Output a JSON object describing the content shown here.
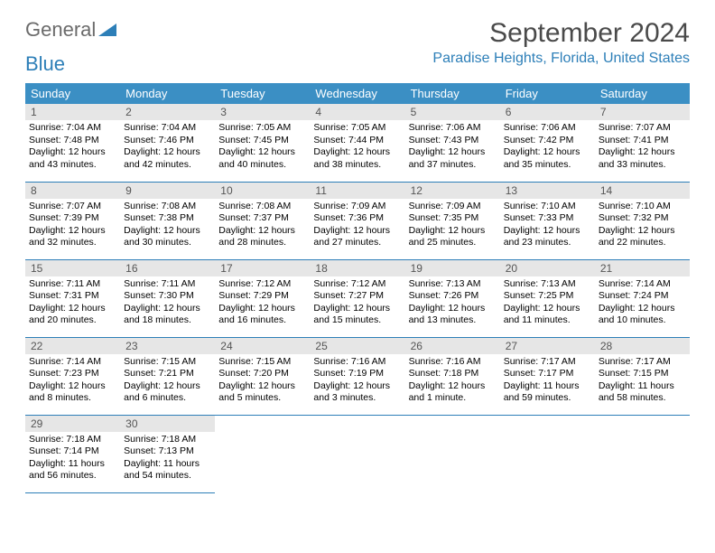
{
  "logo": {
    "text1": "General",
    "text2": "Blue"
  },
  "title": "September 2024",
  "location": "Paradise Heights, Florida, United States",
  "colors": {
    "header_bg": "#3b8fc4",
    "header_text": "#ffffff",
    "accent": "#2d7fb8",
    "daynum_bg": "#e6e6e6",
    "body_text": "#000000",
    "logo_gray": "#6b6b6b"
  },
  "weekdays": [
    "Sunday",
    "Monday",
    "Tuesday",
    "Wednesday",
    "Thursday",
    "Friday",
    "Saturday"
  ],
  "weeks": [
    [
      {
        "n": "1",
        "sr": "Sunrise: 7:04 AM",
        "ss": "Sunset: 7:48 PM",
        "dl": "Daylight: 12 hours and 43 minutes."
      },
      {
        "n": "2",
        "sr": "Sunrise: 7:04 AM",
        "ss": "Sunset: 7:46 PM",
        "dl": "Daylight: 12 hours and 42 minutes."
      },
      {
        "n": "3",
        "sr": "Sunrise: 7:05 AM",
        "ss": "Sunset: 7:45 PM",
        "dl": "Daylight: 12 hours and 40 minutes."
      },
      {
        "n": "4",
        "sr": "Sunrise: 7:05 AM",
        "ss": "Sunset: 7:44 PM",
        "dl": "Daylight: 12 hours and 38 minutes."
      },
      {
        "n": "5",
        "sr": "Sunrise: 7:06 AM",
        "ss": "Sunset: 7:43 PM",
        "dl": "Daylight: 12 hours and 37 minutes."
      },
      {
        "n": "6",
        "sr": "Sunrise: 7:06 AM",
        "ss": "Sunset: 7:42 PM",
        "dl": "Daylight: 12 hours and 35 minutes."
      },
      {
        "n": "7",
        "sr": "Sunrise: 7:07 AM",
        "ss": "Sunset: 7:41 PM",
        "dl": "Daylight: 12 hours and 33 minutes."
      }
    ],
    [
      {
        "n": "8",
        "sr": "Sunrise: 7:07 AM",
        "ss": "Sunset: 7:39 PM",
        "dl": "Daylight: 12 hours and 32 minutes."
      },
      {
        "n": "9",
        "sr": "Sunrise: 7:08 AM",
        "ss": "Sunset: 7:38 PM",
        "dl": "Daylight: 12 hours and 30 minutes."
      },
      {
        "n": "10",
        "sr": "Sunrise: 7:08 AM",
        "ss": "Sunset: 7:37 PM",
        "dl": "Daylight: 12 hours and 28 minutes."
      },
      {
        "n": "11",
        "sr": "Sunrise: 7:09 AM",
        "ss": "Sunset: 7:36 PM",
        "dl": "Daylight: 12 hours and 27 minutes."
      },
      {
        "n": "12",
        "sr": "Sunrise: 7:09 AM",
        "ss": "Sunset: 7:35 PM",
        "dl": "Daylight: 12 hours and 25 minutes."
      },
      {
        "n": "13",
        "sr": "Sunrise: 7:10 AM",
        "ss": "Sunset: 7:33 PM",
        "dl": "Daylight: 12 hours and 23 minutes."
      },
      {
        "n": "14",
        "sr": "Sunrise: 7:10 AM",
        "ss": "Sunset: 7:32 PM",
        "dl": "Daylight: 12 hours and 22 minutes."
      }
    ],
    [
      {
        "n": "15",
        "sr": "Sunrise: 7:11 AM",
        "ss": "Sunset: 7:31 PM",
        "dl": "Daylight: 12 hours and 20 minutes."
      },
      {
        "n": "16",
        "sr": "Sunrise: 7:11 AM",
        "ss": "Sunset: 7:30 PM",
        "dl": "Daylight: 12 hours and 18 minutes."
      },
      {
        "n": "17",
        "sr": "Sunrise: 7:12 AM",
        "ss": "Sunset: 7:29 PM",
        "dl": "Daylight: 12 hours and 16 minutes."
      },
      {
        "n": "18",
        "sr": "Sunrise: 7:12 AM",
        "ss": "Sunset: 7:27 PM",
        "dl": "Daylight: 12 hours and 15 minutes."
      },
      {
        "n": "19",
        "sr": "Sunrise: 7:13 AM",
        "ss": "Sunset: 7:26 PM",
        "dl": "Daylight: 12 hours and 13 minutes."
      },
      {
        "n": "20",
        "sr": "Sunrise: 7:13 AM",
        "ss": "Sunset: 7:25 PM",
        "dl": "Daylight: 12 hours and 11 minutes."
      },
      {
        "n": "21",
        "sr": "Sunrise: 7:14 AM",
        "ss": "Sunset: 7:24 PM",
        "dl": "Daylight: 12 hours and 10 minutes."
      }
    ],
    [
      {
        "n": "22",
        "sr": "Sunrise: 7:14 AM",
        "ss": "Sunset: 7:23 PM",
        "dl": "Daylight: 12 hours and 8 minutes."
      },
      {
        "n": "23",
        "sr": "Sunrise: 7:15 AM",
        "ss": "Sunset: 7:21 PM",
        "dl": "Daylight: 12 hours and 6 minutes."
      },
      {
        "n": "24",
        "sr": "Sunrise: 7:15 AM",
        "ss": "Sunset: 7:20 PM",
        "dl": "Daylight: 12 hours and 5 minutes."
      },
      {
        "n": "25",
        "sr": "Sunrise: 7:16 AM",
        "ss": "Sunset: 7:19 PM",
        "dl": "Daylight: 12 hours and 3 minutes."
      },
      {
        "n": "26",
        "sr": "Sunrise: 7:16 AM",
        "ss": "Sunset: 7:18 PM",
        "dl": "Daylight: 12 hours and 1 minute."
      },
      {
        "n": "27",
        "sr": "Sunrise: 7:17 AM",
        "ss": "Sunset: 7:17 PM",
        "dl": "Daylight: 11 hours and 59 minutes."
      },
      {
        "n": "28",
        "sr": "Sunrise: 7:17 AM",
        "ss": "Sunset: 7:15 PM",
        "dl": "Daylight: 11 hours and 58 minutes."
      }
    ],
    [
      {
        "n": "29",
        "sr": "Sunrise: 7:18 AM",
        "ss": "Sunset: 7:14 PM",
        "dl": "Daylight: 11 hours and 56 minutes."
      },
      {
        "n": "30",
        "sr": "Sunrise: 7:18 AM",
        "ss": "Sunset: 7:13 PM",
        "dl": "Daylight: 11 hours and 54 minutes."
      },
      null,
      null,
      null,
      null,
      null
    ]
  ]
}
